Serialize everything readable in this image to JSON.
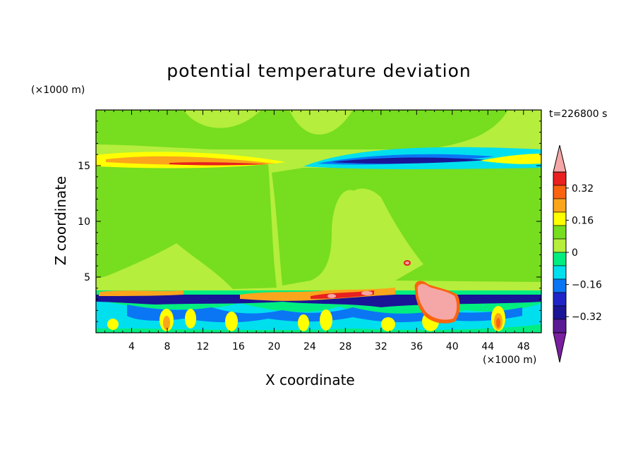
{
  "chart_data": {
    "type": "heatmap",
    "title": "potential temperature deviation",
    "xlabel": "X coordinate",
    "ylabel": "Z coordinate",
    "x_unit": "(×1000 m)",
    "z_unit": "(×1000 m)",
    "time_label": "t=226800 s",
    "xlim": [
      0,
      50
    ],
    "ylim": [
      0,
      20
    ],
    "x_ticks": [
      4,
      8,
      12,
      16,
      20,
      24,
      28,
      32,
      36,
      40,
      44,
      48
    ],
    "y_ticks": [
      5,
      10,
      15
    ],
    "colorbar": {
      "levels": [
        -0.4,
        -0.32,
        -0.24,
        -0.16,
        -0.08,
        0,
        0.08,
        0.16,
        0.24,
        0.32,
        0.4
      ],
      "tick_labels": [
        "0.32",
        "0.16",
        "0",
        "−0.16",
        "−0.32"
      ],
      "tick_values": [
        0.32,
        0.16,
        0,
        -0.16,
        -0.32
      ],
      "colors_high_to_low": [
        "#f5a6a6",
        "#e8201f",
        "#fa6410",
        "#fba51c",
        "#ffff00",
        "#77dd1f",
        "#b5ee3c",
        "#00ee80",
        "#00dfee",
        "#0a76f4",
        "#1f23c8",
        "#1a1496",
        "#5b1b94",
        "#7a1fa0"
      ],
      "extend": "both"
    },
    "grid": false
  }
}
